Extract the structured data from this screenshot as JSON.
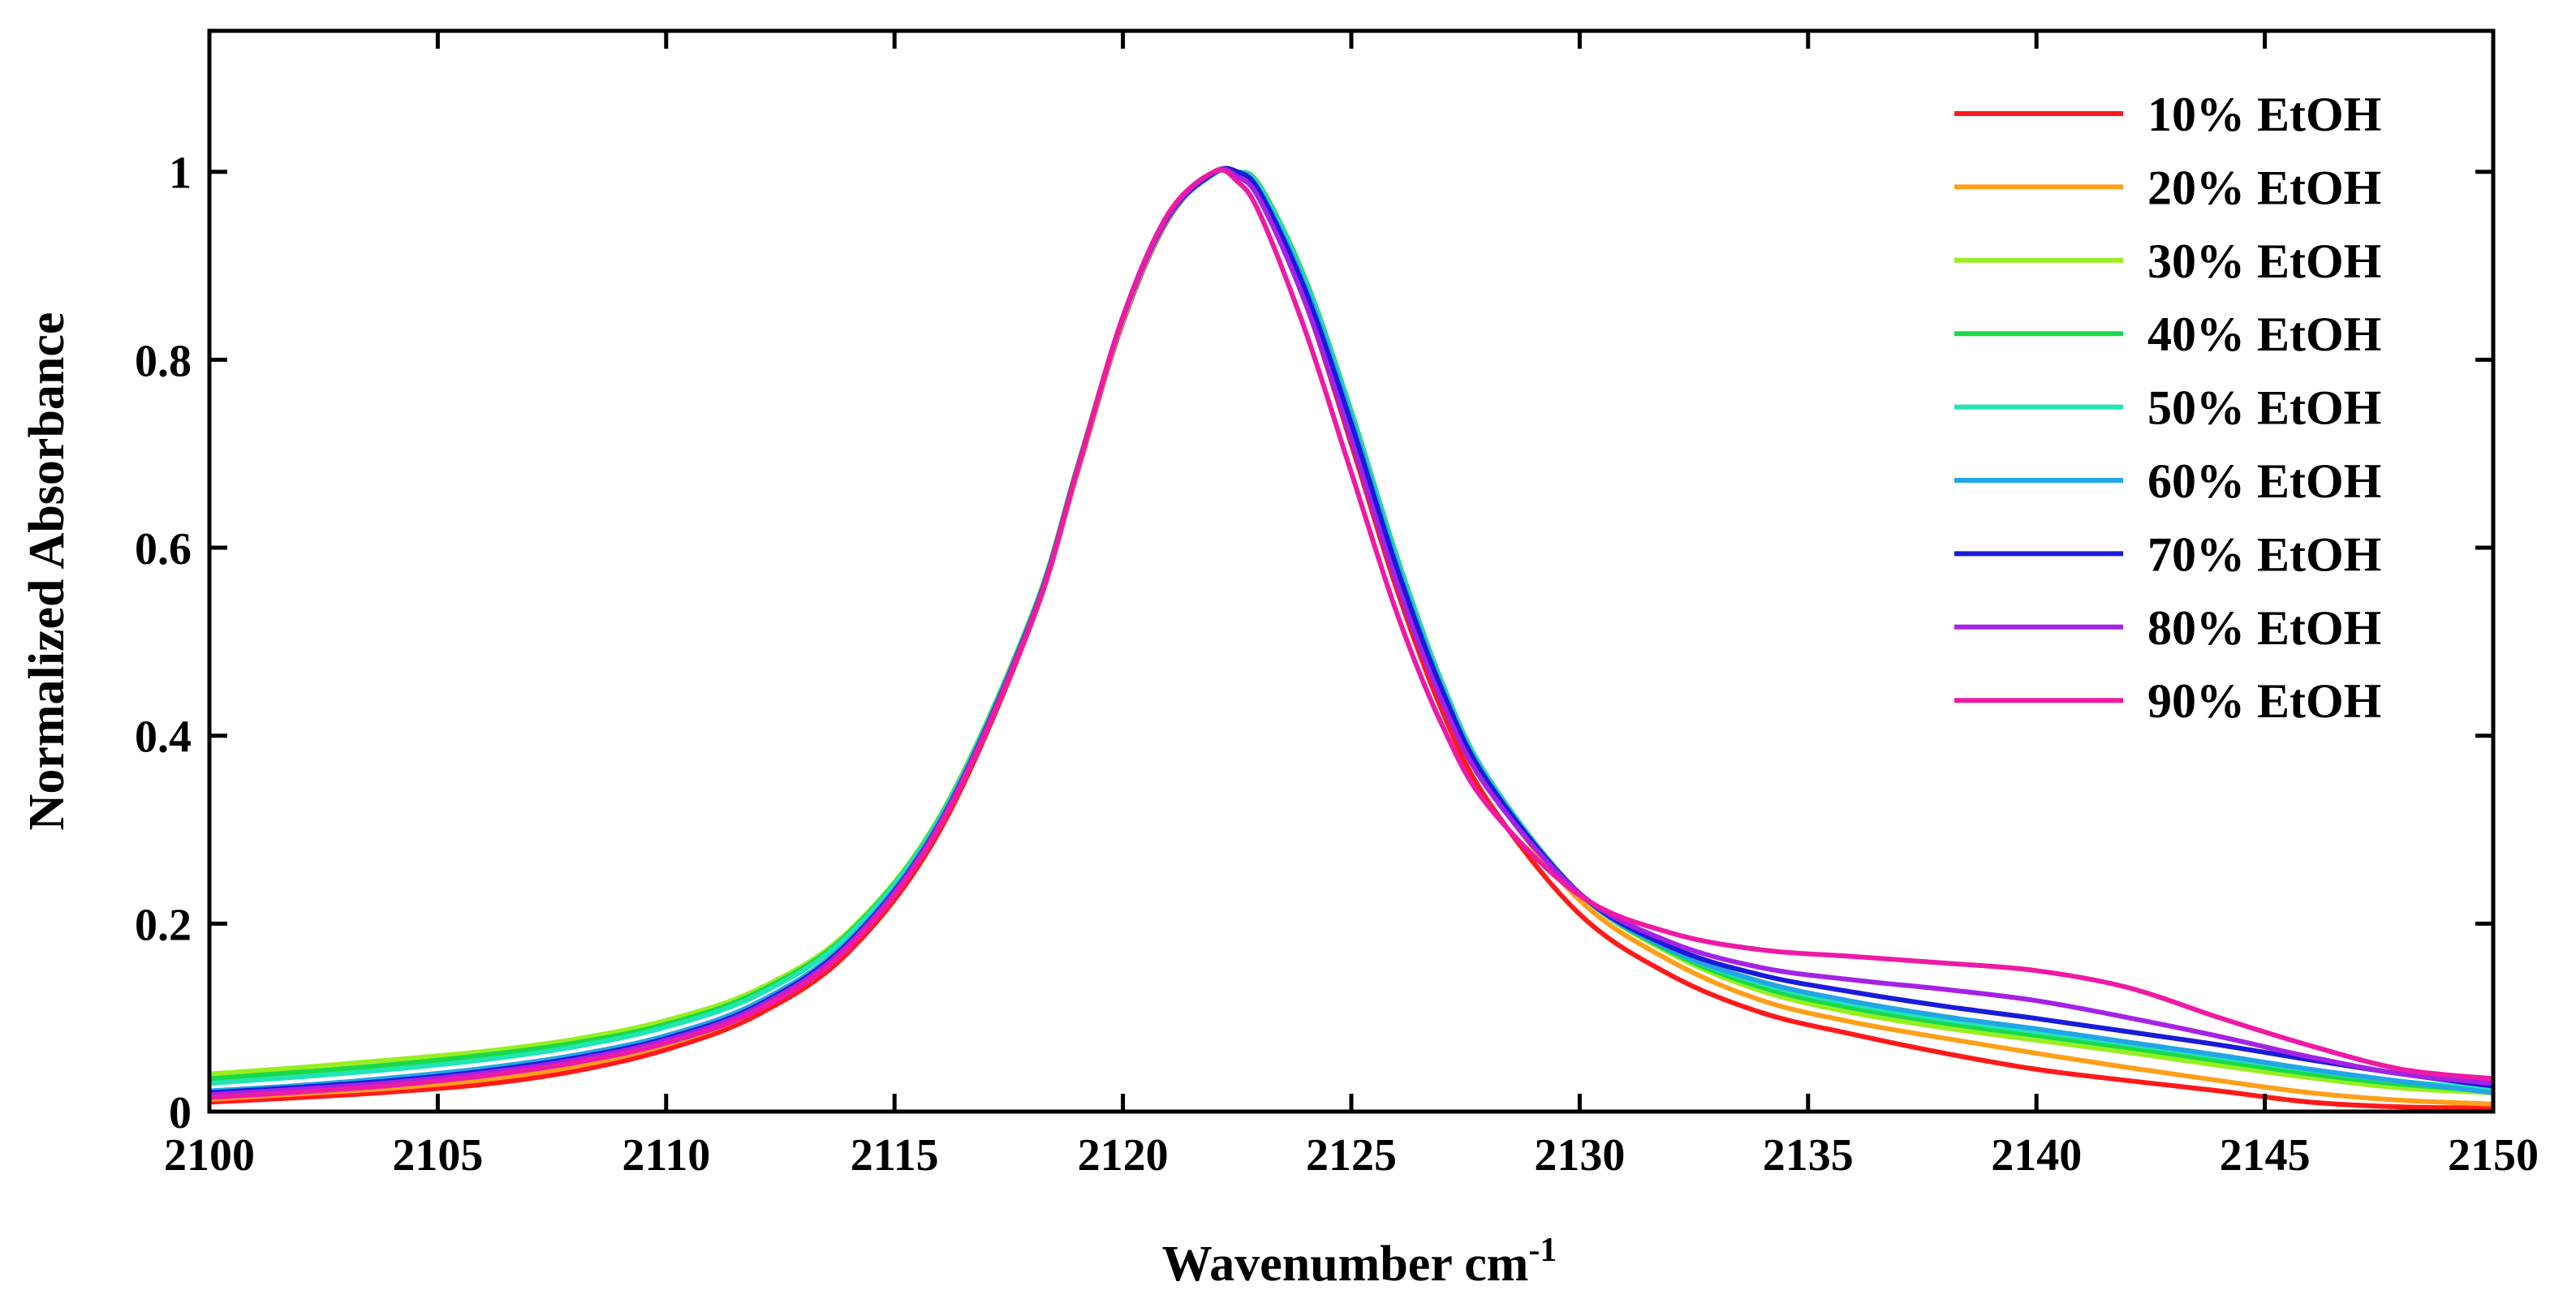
{
  "chart_data": {
    "type": "line",
    "title": "",
    "xlabel": "Wavenumber cm",
    "xlabel_superscript": "-1",
    "ylabel": "Normalized Absorbance",
    "xlim": [
      2100,
      2150
    ],
    "ylim": [
      0,
      1.15
    ],
    "xticks": [
      2100,
      2105,
      2110,
      2115,
      2120,
      2125,
      2130,
      2135,
      2140,
      2145,
      2150
    ],
    "yticks": [
      0,
      0.2,
      0.4,
      0.6,
      0.8,
      1
    ],
    "ytick_labels": [
      "0",
      "0.2",
      "0.4",
      "0.6",
      "0.8",
      "1"
    ],
    "legend_position": "top-right",
    "grid": false,
    "x": [
      2100,
      2102,
      2104,
      2106,
      2108,
      2110,
      2112,
      2114,
      2116,
      2118,
      2119,
      2120,
      2121,
      2122,
      2122.5,
      2123,
      2124,
      2125,
      2126,
      2127,
      2128,
      2130,
      2132,
      2134,
      2136,
      2138,
      2140,
      2142,
      2144,
      2146,
      2148,
      2150
    ],
    "series": [
      {
        "name": "10% EtOH",
        "color": "#ff1a1a",
        "values": [
          0.01,
          0.015,
          0.021,
          0.029,
          0.043,
          0.066,
          0.103,
          0.17,
          0.3,
          0.52,
          0.68,
          0.84,
          0.95,
          1.0,
          0.995,
          0.97,
          0.86,
          0.71,
          0.555,
          0.425,
          0.33,
          0.21,
          0.145,
          0.105,
          0.082,
          0.062,
          0.045,
          0.033,
          0.022,
          0.01,
          0.005,
          0.004
        ]
      },
      {
        "name": "20% EtOH",
        "color": "#ff9f1a",
        "values": [
          0.013,
          0.019,
          0.025,
          0.034,
          0.048,
          0.071,
          0.108,
          0.175,
          0.305,
          0.522,
          0.682,
          0.842,
          0.951,
          1.0,
          0.997,
          0.975,
          0.87,
          0.725,
          0.57,
          0.44,
          0.345,
          0.225,
          0.16,
          0.118,
          0.095,
          0.078,
          0.062,
          0.047,
          0.033,
          0.02,
          0.012,
          0.008
        ]
      },
      {
        "name": "30% EtOH",
        "color": "#99ee22",
        "values": [
          0.04,
          0.047,
          0.055,
          0.064,
          0.077,
          0.097,
          0.13,
          0.192,
          0.315,
          0.528,
          0.686,
          0.845,
          0.952,
          0.998,
          1.0,
          0.985,
          0.885,
          0.745,
          0.59,
          0.455,
          0.355,
          0.232,
          0.168,
          0.128,
          0.105,
          0.089,
          0.076,
          0.063,
          0.049,
          0.036,
          0.025,
          0.02
        ]
      },
      {
        "name": "40% EtOH",
        "color": "#1ad94a",
        "values": [
          0.035,
          0.042,
          0.05,
          0.06,
          0.073,
          0.093,
          0.127,
          0.19,
          0.314,
          0.527,
          0.685,
          0.844,
          0.952,
          0.998,
          1.0,
          0.985,
          0.885,
          0.745,
          0.59,
          0.455,
          0.355,
          0.232,
          0.17,
          0.132,
          0.11,
          0.094,
          0.081,
          0.068,
          0.054,
          0.04,
          0.029,
          0.022
        ]
      },
      {
        "name": "50% EtOH",
        "color": "#22e5b5",
        "values": [
          0.03,
          0.037,
          0.045,
          0.055,
          0.069,
          0.09,
          0.124,
          0.188,
          0.313,
          0.526,
          0.684,
          0.844,
          0.952,
          0.998,
          1.0,
          0.983,
          0.882,
          0.742,
          0.587,
          0.453,
          0.354,
          0.232,
          0.172,
          0.136,
          0.114,
          0.098,
          0.085,
          0.072,
          0.058,
          0.044,
          0.032,
          0.024
        ]
      },
      {
        "name": "60% EtOH",
        "color": "#22a6e5",
        "values": [
          0.022,
          0.028,
          0.036,
          0.046,
          0.06,
          0.081,
          0.116,
          0.182,
          0.31,
          0.525,
          0.684,
          0.844,
          0.952,
          0.999,
          1.0,
          0.98,
          0.878,
          0.738,
          0.583,
          0.45,
          0.352,
          0.232,
          0.172,
          0.138,
          0.117,
          0.101,
          0.088,
          0.074,
          0.06,
          0.045,
          0.032,
          0.02
        ]
      },
      {
        "name": "70% EtOH",
        "color": "#1a1ad9",
        "values": [
          0.02,
          0.026,
          0.033,
          0.043,
          0.057,
          0.078,
          0.113,
          0.18,
          0.308,
          0.524,
          0.684,
          0.845,
          0.953,
          0.999,
          1.0,
          0.978,
          0.873,
          0.732,
          0.578,
          0.447,
          0.35,
          0.232,
          0.175,
          0.145,
          0.127,
          0.112,
          0.099,
          0.085,
          0.071,
          0.055,
          0.04,
          0.027
        ]
      },
      {
        "name": "80% EtOH",
        "color": "#a522e5",
        "values": [
          0.018,
          0.024,
          0.031,
          0.041,
          0.055,
          0.076,
          0.111,
          0.178,
          0.307,
          0.523,
          0.683,
          0.845,
          0.954,
          1.0,
          0.995,
          0.97,
          0.86,
          0.715,
          0.562,
          0.435,
          0.343,
          0.232,
          0.18,
          0.153,
          0.14,
          0.13,
          0.118,
          0.1,
          0.08,
          0.058,
          0.04,
          0.03
        ]
      },
      {
        "name": "90% EtOH",
        "color": "#ee1aa6",
        "values": [
          0.015,
          0.021,
          0.028,
          0.038,
          0.052,
          0.073,
          0.108,
          0.175,
          0.305,
          0.522,
          0.683,
          0.846,
          0.956,
          1.0,
          0.99,
          0.955,
          0.83,
          0.68,
          0.53,
          0.41,
          0.325,
          0.23,
          0.19,
          0.172,
          0.165,
          0.158,
          0.15,
          0.132,
          0.1,
          0.07,
          0.045,
          0.035
        ]
      }
    ]
  }
}
